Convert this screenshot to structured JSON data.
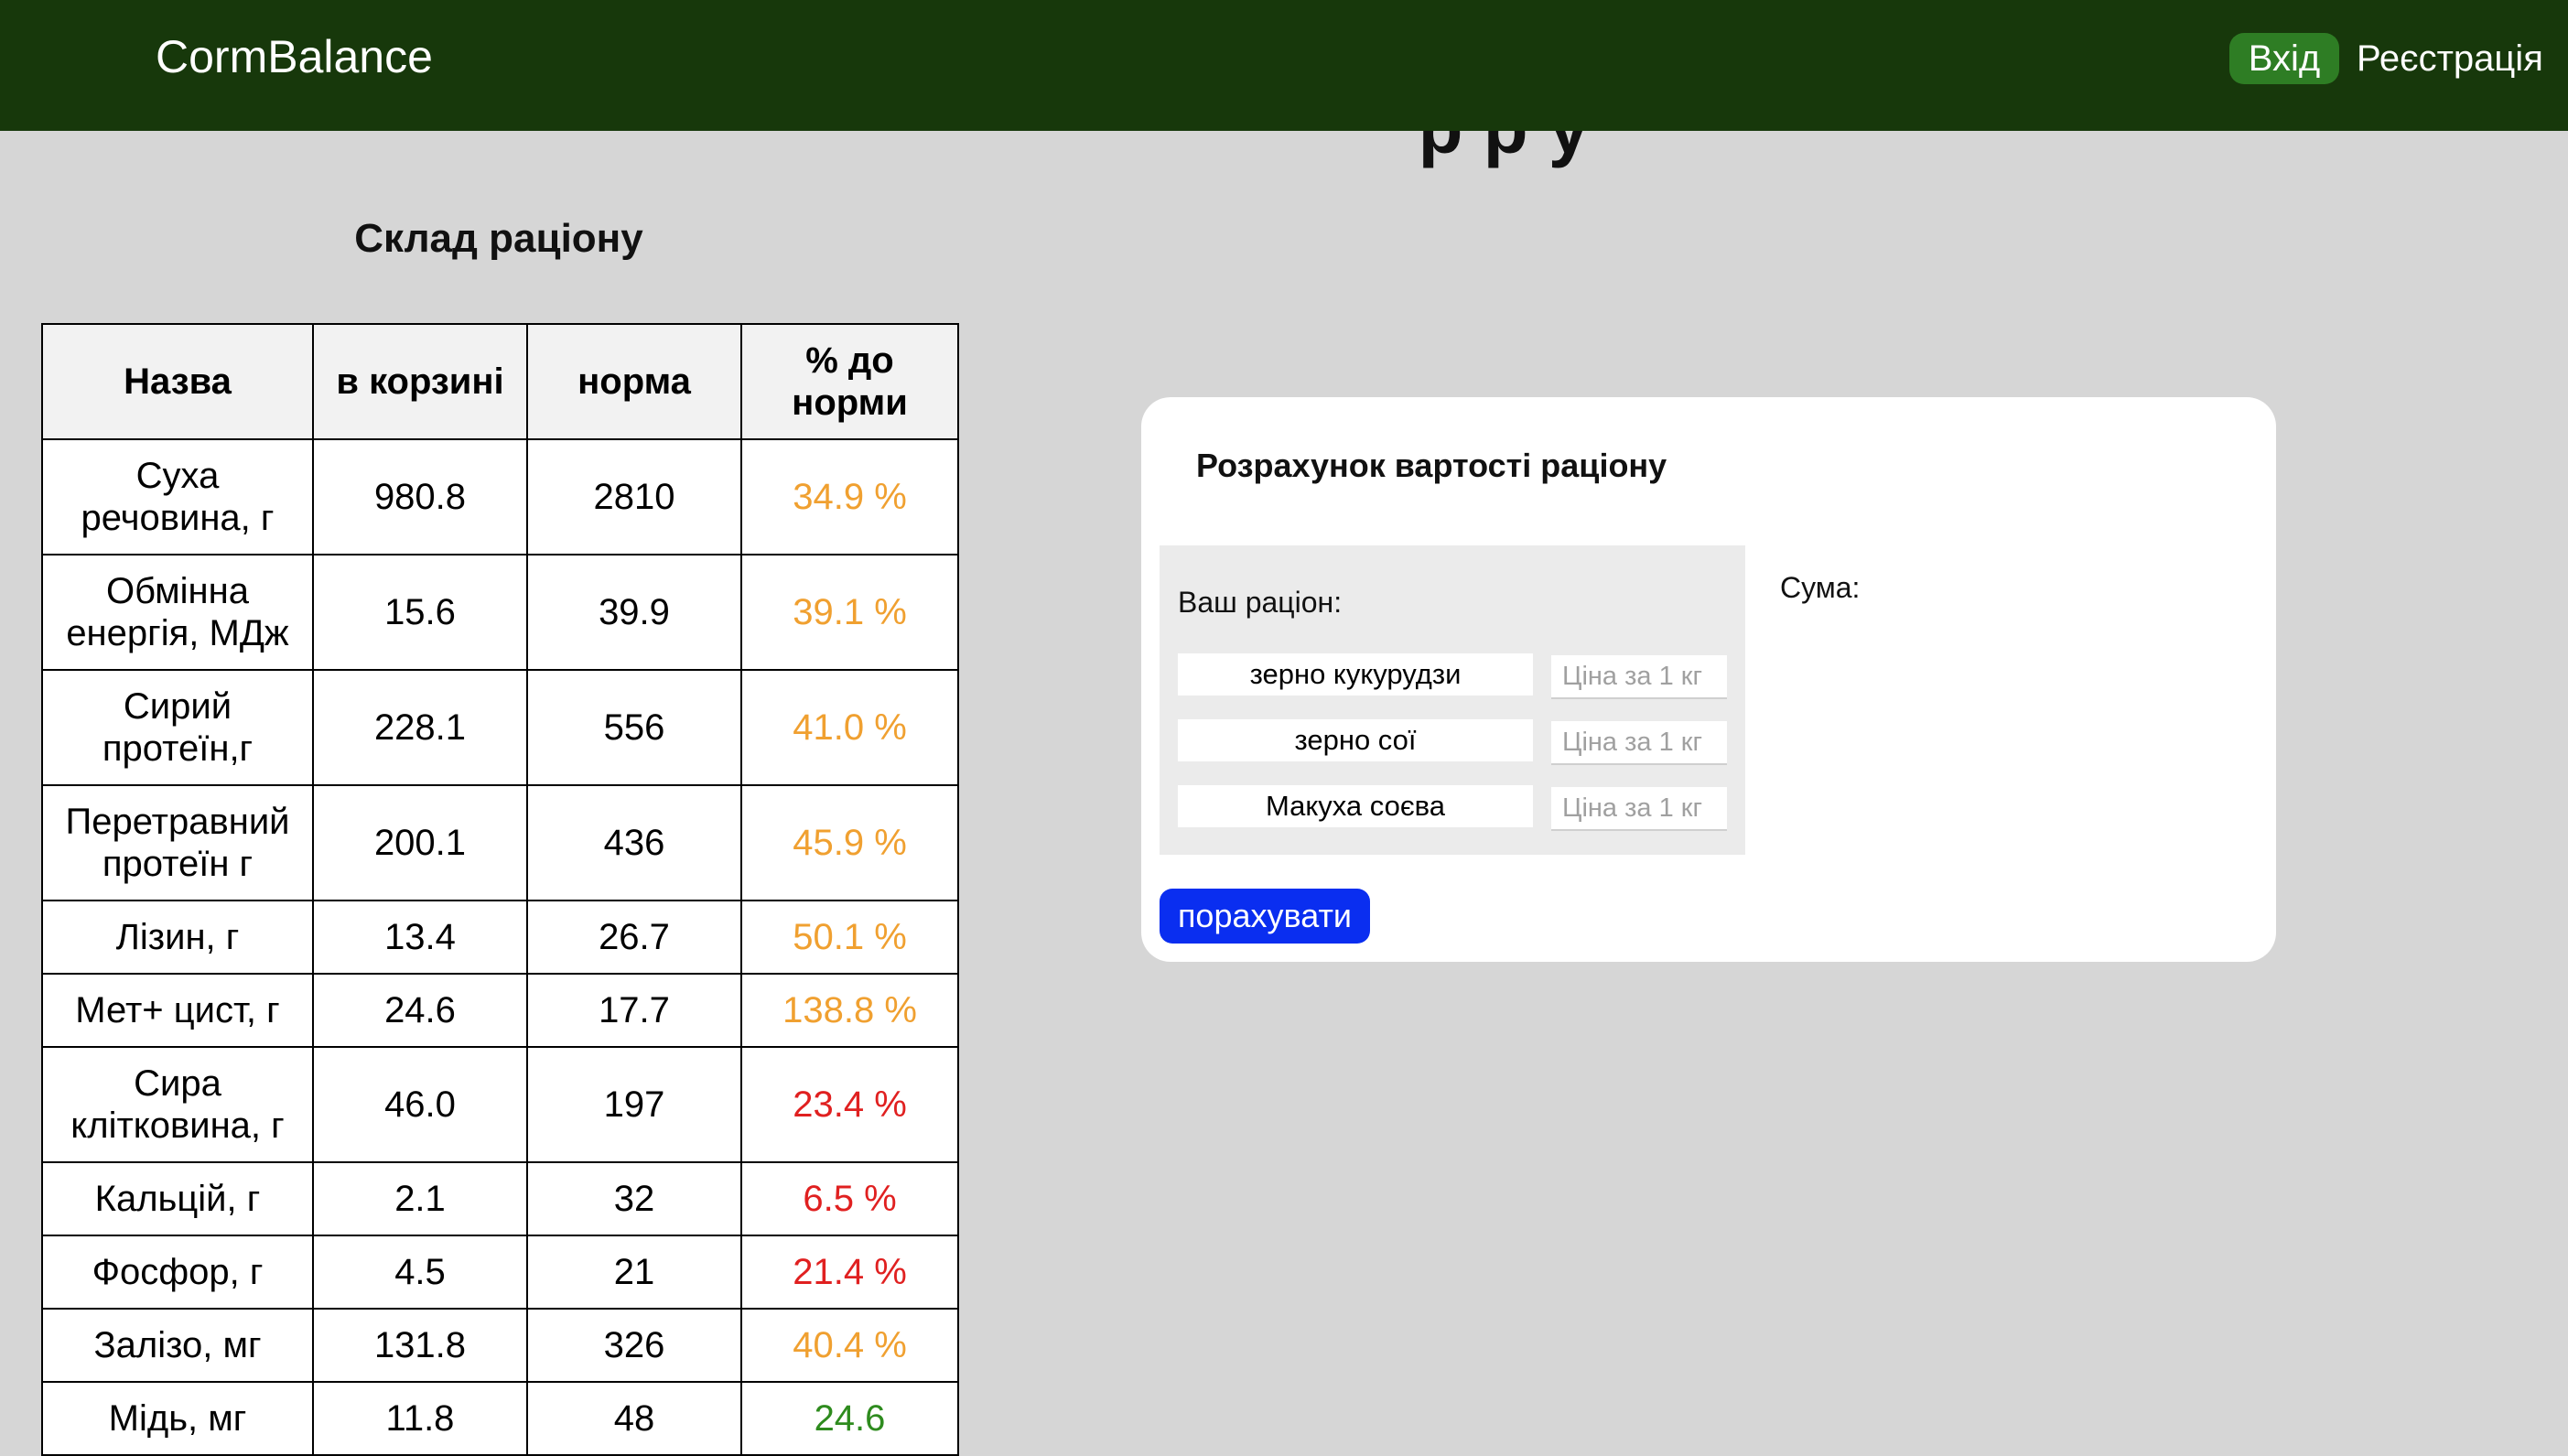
{
  "header": {
    "brand": "CormBalance",
    "login_label": "Вхід",
    "register_label": "Реєстрація"
  },
  "composition": {
    "title": "Склад раціону",
    "columns": [
      "Назва",
      "в корзині",
      "норма",
      "% до норми"
    ],
    "rows": [
      {
        "name": "Суха речовина, г",
        "in_basket": "980.8",
        "norm": "2810",
        "percent": "34.9 %",
        "status": "orange"
      },
      {
        "name": "Обмінна енергія, МДж",
        "in_basket": "15.6",
        "norm": "39.9",
        "percent": "39.1 %",
        "status": "orange"
      },
      {
        "name": "Сирий протеїн,г",
        "in_basket": "228.1",
        "norm": "556",
        "percent": "41.0 %",
        "status": "orange"
      },
      {
        "name": "Перетравний протеїн г",
        "in_basket": "200.1",
        "norm": "436",
        "percent": "45.9 %",
        "status": "orange"
      },
      {
        "name": "Лізин, г",
        "in_basket": "13.4",
        "norm": "26.7",
        "percent": "50.1 %",
        "status": "orange"
      },
      {
        "name": "Мет+ цист, г",
        "in_basket": "24.6",
        "norm": "17.7",
        "percent": "138.8 %",
        "status": "orange"
      },
      {
        "name": "Сира клітковина, г",
        "in_basket": "46.0",
        "norm": "197",
        "percent": "23.4 %",
        "status": "red"
      },
      {
        "name": "Кальцій, г",
        "in_basket": "2.1",
        "norm": "32",
        "percent": "6.5 %",
        "status": "red"
      },
      {
        "name": "Фосфор, г",
        "in_basket": "4.5",
        "norm": "21",
        "percent": "21.4 %",
        "status": "red"
      },
      {
        "name": "Залізо, мг",
        "in_basket": "131.8",
        "norm": "326",
        "percent": "40.4 %",
        "status": "orange"
      },
      {
        "name": "Мідь, мг",
        "in_basket": "11.8",
        "norm": "48",
        "percent": "24.6",
        "status": "green"
      }
    ]
  },
  "cost": {
    "title": "Розрахунок вартості раціону",
    "ration_label": "Ваш раціон:",
    "price_placeholder": "Ціна за 1 кг",
    "feeds": [
      {
        "name": "зерно кукурудзи",
        "price": ""
      },
      {
        "name": "зерно сої",
        "price": ""
      },
      {
        "name": "Макуха соєва",
        "price": ""
      }
    ],
    "sum_label": "Сума:",
    "calculate_label": "порахувати"
  },
  "colors": {
    "header_bg": "#17380b",
    "login_bg": "#2e7d24",
    "calculate_bg": "#0a2ef0",
    "status_orange": "#f0a030",
    "status_red": "#e02020",
    "status_green": "#2e8b1e"
  }
}
